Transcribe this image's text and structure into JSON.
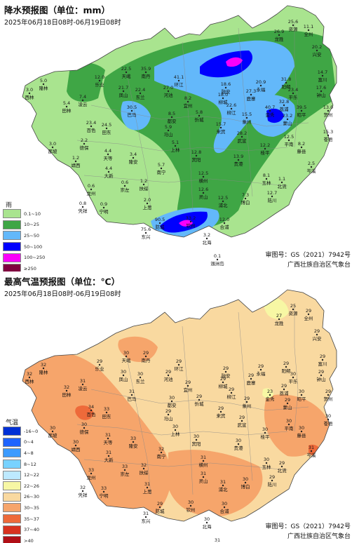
{
  "rain": {
    "title": "降水预报图（单位：mm）",
    "subtitle": "2025年06月18日08时-06月19日08时",
    "legend_title": "雨",
    "legend": [
      {
        "label": "0.1~10",
        "color": "#a9e48f"
      },
      {
        "label": "10~25",
        "color": "#3fa645"
      },
      {
        "label": "25~50",
        "color": "#63b8fa"
      },
      {
        "label": "50~100",
        "color": "#0000fe"
      },
      {
        "label": "100~250",
        "color": "#fa00fa"
      },
      {
        "label": "≥250",
        "color": "#810040"
      }
    ],
    "approval": "审图号：GS（2021）7942号",
    "agency": "广西壮族自治区气象台",
    "stations": [
      {
        "name": "资源",
        "value": "25.6"
      },
      {
        "name": "全州",
        "value": "11.1"
      },
      {
        "name": "龙胜",
        "value": "26.9"
      },
      {
        "name": "兴安",
        "value": "20.2"
      },
      {
        "name": "隆林",
        "value": "5.0"
      },
      {
        "name": "西林",
        "value": "3.0"
      },
      {
        "name": "天峨",
        "value": "22.5"
      },
      {
        "name": "南丹",
        "value": "35.9"
      },
      {
        "name": "环江",
        "value": "41.1"
      },
      {
        "name": "融安",
        "value": "18.6"
      },
      {
        "name": "永福",
        "value": "20.9"
      },
      {
        "name": "阳朔",
        "value": "31.8"
      },
      {
        "name": "富川",
        "value": "14.7"
      },
      {
        "name": "平乐",
        "value": "23.4"
      },
      {
        "name": "钟山",
        "value": "17.6"
      },
      {
        "name": "乐业",
        "value": "12.0"
      },
      {
        "name": "凤山",
        "value": "21.7"
      },
      {
        "name": "东兰",
        "value": "22.4"
      },
      {
        "name": "河池",
        "value": "27.0"
      },
      {
        "name": "宜州",
        "value": "8.2"
      },
      {
        "name": "柳城",
        "value": "18.0"
      },
      {
        "name": "鹿寨",
        "value": "27.3"
      },
      {
        "name": "荔浦",
        "value": "32.8"
      },
      {
        "name": "昭平",
        "value": "39.5"
      },
      {
        "name": "贺州",
        "value": "13.0"
      },
      {
        "name": "凌云",
        "value": "7.4"
      },
      {
        "name": "田林",
        "value": "5.4"
      },
      {
        "name": "巴马",
        "value": "30.5"
      },
      {
        "name": "都安",
        "value": "8.5"
      },
      {
        "name": "忻城",
        "value": "5.8"
      },
      {
        "name": "柳江",
        "value": "22.6"
      },
      {
        "name": "金秀",
        "value": "40.7"
      },
      {
        "name": "蒙山",
        "value": "23.2"
      },
      {
        "name": "百色",
        "value": "23.4"
      },
      {
        "name": "田东",
        "value": "24.5"
      },
      {
        "name": "马山",
        "value": "5.9"
      },
      {
        "name": "来宾",
        "value": "15.7"
      },
      {
        "name": "象州",
        "value": "15.5"
      },
      {
        "name": "平南",
        "value": "12.5"
      },
      {
        "name": "苍梧",
        "value": "15.3"
      },
      {
        "name": "德保",
        "value": "2.2"
      },
      {
        "name": "那坡",
        "value": "3.0"
      },
      {
        "name": "靖西",
        "value": "1.2"
      },
      {
        "name": "天等",
        "value": "4.4"
      },
      {
        "name": "大新",
        "value": "4.4"
      },
      {
        "name": "隆安",
        "value": "3.4"
      },
      {
        "name": "上林",
        "value": "5.1"
      },
      {
        "name": "宾阳",
        "value": "12.8"
      },
      {
        "name": "武宣",
        "value": "28.2"
      },
      {
        "name": "桂平",
        "value": "12.2"
      },
      {
        "name": "藤县",
        "value": "8.2"
      },
      {
        "name": "岑溪",
        "value": "2.5"
      },
      {
        "name": "贵港",
        "value": "13.9"
      },
      {
        "name": "龙州",
        "value": "0.6"
      },
      {
        "name": "崇左",
        "value": "0.6"
      },
      {
        "name": "扶绥",
        "value": "1.2"
      },
      {
        "name": "南宁",
        "value": "5.7"
      },
      {
        "name": "横州",
        "value": "12.5"
      },
      {
        "name": "玉林",
        "value": "8.1"
      },
      {
        "name": "北流",
        "value": "1.1"
      },
      {
        "name": "凭祥",
        "value": "0.8"
      },
      {
        "name": "宁明",
        "value": "0.9"
      },
      {
        "name": "上思",
        "value": "2.0"
      },
      {
        "name": "灵山",
        "value": "12.6"
      },
      {
        "name": "浦北",
        "value": "12.5"
      },
      {
        "name": "博白",
        "value": "7.3"
      },
      {
        "name": "陆川",
        "value": "12.7"
      },
      {
        "name": "防城",
        "value": "90.5"
      },
      {
        "name": "钦州",
        "value": "33.2"
      },
      {
        "name": "东兴",
        "value": "75.6"
      },
      {
        "name": "北海",
        "value": "3.2"
      },
      {
        "name": "合浦",
        "value": "12.0"
      },
      {
        "name": "涠洲岛",
        "value": "0.1"
      }
    ]
  },
  "temp": {
    "title": "最高气温预报图（单位：℃）",
    "subtitle": "2025年06月18日08时-06月19日08时",
    "legend_title": "气温",
    "legend": [
      {
        "label": "-16~0",
        "color": "#0030d6"
      },
      {
        "label": "0~4",
        "color": "#1e64ff"
      },
      {
        "label": "4~8",
        "color": "#3c9bff"
      },
      {
        "label": "8~12",
        "color": "#78d2ff"
      },
      {
        "label": "12~22",
        "color": "#bde9ff"
      },
      {
        "label": "22~26",
        "color": "#f7f7a4"
      },
      {
        "label": "26~30",
        "color": "#f9d9a0"
      },
      {
        "label": "30~35",
        "color": "#f6a56b"
      },
      {
        "label": "35~37",
        "color": "#ee6a3a"
      },
      {
        "label": "37~40",
        "color": "#d8321f"
      },
      {
        "label": ">40",
        "color": "#b10f16"
      }
    ],
    "approval": "审图号：GS（2021）7942号",
    "agency": "广西壮族自治区气象台",
    "stations": [
      {
        "name": "资源",
        "value": "25"
      },
      {
        "name": "全州",
        "value": "29"
      },
      {
        "name": "龙胜",
        "value": "27"
      },
      {
        "name": "兴安",
        "value": "29"
      },
      {
        "name": "隆林",
        "value": "32"
      },
      {
        "name": "西林",
        "value": "32"
      },
      {
        "name": "天峨",
        "value": "30"
      },
      {
        "name": "南丹",
        "value": "29"
      },
      {
        "name": "环江",
        "value": "29"
      },
      {
        "name": "融安",
        "value": "29"
      },
      {
        "name": "永福",
        "value": "29"
      },
      {
        "name": "阳朔",
        "value": "29"
      },
      {
        "name": "富川",
        "value": "29"
      },
      {
        "name": "平乐",
        "value": "30"
      },
      {
        "name": "钟山",
        "value": "29"
      },
      {
        "name": "乐业",
        "value": "29"
      },
      {
        "name": "凤山",
        "value": "30"
      },
      {
        "name": "东兰",
        "value": "30"
      },
      {
        "name": "河池",
        "value": "29"
      },
      {
        "name": "宜州",
        "value": "29"
      },
      {
        "name": "柳城",
        "value": "29"
      },
      {
        "name": "鹿寨",
        "value": "29"
      },
      {
        "name": "荔浦",
        "value": "29"
      },
      {
        "name": "昭平",
        "value": "30"
      },
      {
        "name": "贺州",
        "value": "29"
      },
      {
        "name": "凌云",
        "value": "31"
      },
      {
        "name": "田林",
        "value": "32"
      },
      {
        "name": "巴马",
        "value": "31"
      },
      {
        "name": "都安",
        "value": "30"
      },
      {
        "name": "忻城",
        "value": "29"
      },
      {
        "name": "柳江",
        "value": "29"
      },
      {
        "name": "金秀",
        "value": "23"
      },
      {
        "name": "蒙山",
        "value": "29"
      },
      {
        "name": "百色",
        "value": "34"
      },
      {
        "name": "田东",
        "value": "33"
      },
      {
        "name": "马山",
        "value": "29"
      },
      {
        "name": "来宾",
        "value": "29"
      },
      {
        "name": "象州",
        "value": "29"
      },
      {
        "name": "平南",
        "value": "30"
      },
      {
        "name": "苍梧",
        "value": "30"
      },
      {
        "name": "德保",
        "value": "30"
      },
      {
        "name": "那坡",
        "value": "30"
      },
      {
        "name": "靖西",
        "value": "30"
      },
      {
        "name": "天等",
        "value": "31"
      },
      {
        "name": "大新",
        "value": "31"
      },
      {
        "name": "隆安",
        "value": "33"
      },
      {
        "name": "上林",
        "value": "30"
      },
      {
        "name": "宾阳",
        "value": "30"
      },
      {
        "name": "武宣",
        "value": "29"
      },
      {
        "name": "桂平",
        "value": "30"
      },
      {
        "name": "藤县",
        "value": "30"
      },
      {
        "name": "岑溪",
        "value": "31"
      },
      {
        "name": "贵港",
        "value": "30"
      },
      {
        "name": "龙州",
        "value": "33"
      },
      {
        "name": "崇左",
        "value": "33"
      },
      {
        "name": "扶绥",
        "value": "32"
      },
      {
        "name": "南宁",
        "value": "32"
      },
      {
        "name": "横州",
        "value": "31"
      },
      {
        "name": "玉林",
        "value": "30"
      },
      {
        "name": "北流",
        "value": "29"
      },
      {
        "name": "凭祥",
        "value": "32"
      },
      {
        "name": "宁明",
        "value": "33"
      },
      {
        "name": "上思",
        "value": "31"
      },
      {
        "name": "灵山",
        "value": "31"
      },
      {
        "name": "浦北",
        "value": "31"
      },
      {
        "name": "博白",
        "value": "30"
      },
      {
        "name": "陆川",
        "value": "29"
      },
      {
        "name": "防城",
        "value": "29"
      },
      {
        "name": "钦州",
        "value": "30"
      },
      {
        "name": "东兴",
        "value": "31"
      },
      {
        "name": "北海",
        "value": "30"
      },
      {
        "name": "合浦",
        "value": "30"
      },
      {
        "name": "涠洲岛",
        "value": "31"
      }
    ]
  }
}
